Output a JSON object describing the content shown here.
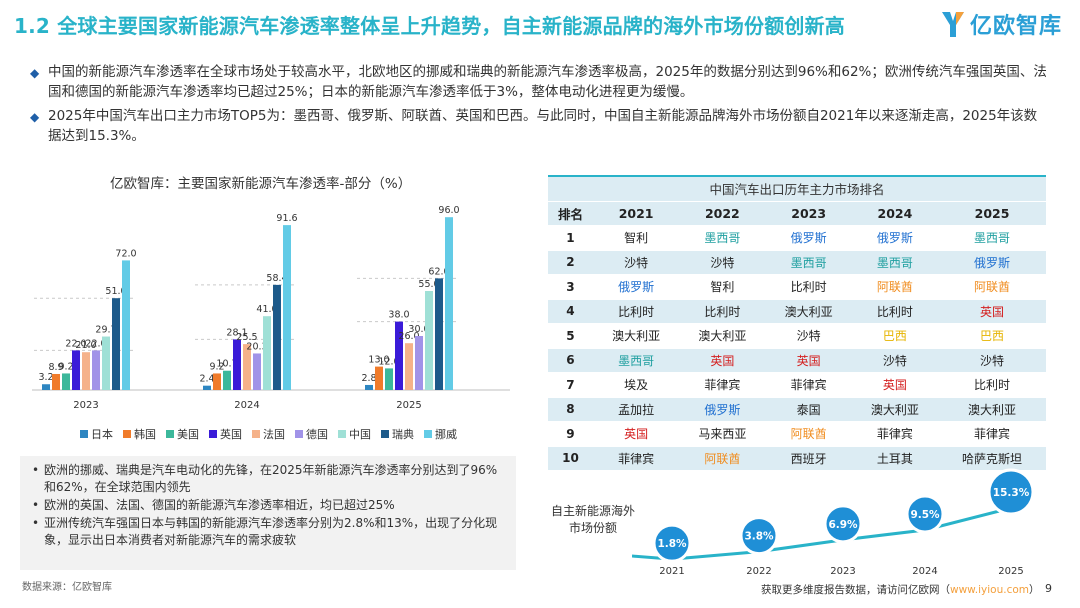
{
  "header": {
    "title": "1.2 全球主要国家新能源汽车渗透率整体呈上升趋势，自主新能源品牌的海外市场份额创新高",
    "logo_text": "亿欧智库"
  },
  "bullets": [
    "中国的新能源汽车渗透率在全球市场处于较高水平，北欧地区的挪威和瑞典的新能源汽车渗透率极高，2025年的数据分别达到96%和62%；欧洲传统汽车强国英国、法国和德国的新能源汽车渗透率均已超过25%；日本的新能源汽车渗透率低于3%，整体电动化进程更为缓慢。",
    "2025年中国汽车出口主力市场TOP5为：墨西哥、俄罗斯、阿联酋、英国和巴西。与此同时，中国自主新能源品牌海外市场份额自2021年以来逐渐走高，2025年该数据达到15.3%。"
  ],
  "bullet_mark": "◆",
  "note_mark": "•",
  "notes": [
    "欧洲的挪威、瑞典是汽车电动化的先锋，在2025年新能源汽车渗透率分别达到了96%和62%，在全球范围内领先",
    "欧洲的英国、法国、德国的新能源汽车渗透率相近，均已超过25%",
    "亚洲传统汽车强国日本与韩国的新能源汽车渗透率分别为2.8%和13%，出现了分化现象，显示出日本消费者对新能源汽车的需求疲软"
  ],
  "source": "数据来源：亿欧智库",
  "footer": {
    "text": "获取更多维度报告数据，请访问亿欧网（",
    "link": "www.iyiou.com",
    "close": "）",
    "page": "9"
  },
  "colors": {
    "title": "#29b3c9",
    "japan": "#2e86c1",
    "korea": "#f07b2a",
    "usa": "#3cb89b",
    "uk": "#3a1bd8",
    "france": "#f5b28a",
    "germany": "#a193e8",
    "china": "#9fe0d6",
    "sweden": "#1d5a8a",
    "norway": "#62cbe6",
    "share_line": "#29b3c9"
  },
  "legend": [
    "日本",
    "韩国",
    "美国",
    "英国",
    "法国",
    "德国",
    "中国",
    "瑞典",
    "挪威"
  ],
  "chart_data": [
    {
      "type": "bar",
      "title": "亿欧智库：主要国家新能源汽车渗透率-部分（%）",
      "categories": [
        "2023",
        "2024",
        "2025"
      ],
      "ylim": [
        0,
        100
      ],
      "series": [
        {
          "name": "日本",
          "values": [
            3.2,
            2.4,
            2.8
          ]
        },
        {
          "name": "韩国",
          "values": [
            8.9,
            9.2,
            13.0
          ]
        },
        {
          "name": "美国",
          "values": [
            9.2,
            10.7,
            12.0
          ]
        },
        {
          "name": "英国",
          "values": [
            22.0,
            28.1,
            38.0
          ]
        },
        {
          "name": "法国",
          "values": [
            21.0,
            25.5,
            26.0
          ]
        },
        {
          "name": "德国",
          "values": [
            22.0,
            20.3,
            30.0
          ]
        },
        {
          "name": "中国",
          "values": [
            29.7,
            41.0,
            55.0
          ]
        },
        {
          "name": "瑞典",
          "values": [
            51.0,
            58.4,
            62.0
          ]
        },
        {
          "name": "挪威",
          "values": [
            72.0,
            91.6,
            96.0
          ]
        }
      ],
      "labels": [
        [
          "3.2",
          "8.9",
          "9.2",
          "22.0",
          "21.0",
          "22.0",
          "29.7",
          "51.0",
          "72.0"
        ],
        [
          "2.4",
          "9.2",
          "10.7",
          "28.1",
          "25.5",
          "20.3",
          "41.0",
          "58.4",
          "91.6"
        ],
        [
          "2.8",
          "13.0",
          "12.0",
          "38.0",
          "26.0",
          "30.0",
          "55.0",
          "62.0",
          "96.0"
        ]
      ]
    },
    {
      "type": "line",
      "title": "自主新能源海外市场份额",
      "x": [
        "2021",
        "2022",
        "2023",
        "2024",
        "2025"
      ],
      "values": [
        1.8,
        3.8,
        6.9,
        9.5,
        15.3
      ],
      "labels": [
        "1.8%",
        "3.8%",
        "6.9%",
        "9.5%",
        "15.3%"
      ]
    }
  ],
  "table": {
    "caption": "中国汽车出口历年主力市场排名",
    "headers": [
      "排名",
      "2021",
      "2022",
      "2023",
      "2024",
      "2025"
    ],
    "rows": [
      [
        "1",
        "智利",
        "墨西哥",
        "俄罗斯",
        "俄罗斯",
        "墨西哥"
      ],
      [
        "2",
        "沙特",
        "沙特",
        "墨西哥",
        "墨西哥",
        "俄罗斯"
      ],
      [
        "3",
        "俄罗斯",
        "智利",
        "比利时",
        "阿联酋",
        "阿联酋"
      ],
      [
        "4",
        "比利时",
        "比利时",
        "澳大利亚",
        "比利时",
        "英国"
      ],
      [
        "5",
        "澳大利亚",
        "澳大利亚",
        "沙特",
        "巴西",
        "巴西"
      ],
      [
        "6",
        "墨西哥",
        "英国",
        "英国",
        "沙特",
        "沙特"
      ],
      [
        "7",
        "埃及",
        "菲律宾",
        "菲律宾",
        "英国",
        "比利时"
      ],
      [
        "8",
        "孟加拉",
        "俄罗斯",
        "泰国",
        "澳大利亚",
        "澳大利亚"
      ],
      [
        "9",
        "英国",
        "马来西亚",
        "阿联酋",
        "菲律宾",
        "菲律宾"
      ],
      [
        "10",
        "菲律宾",
        "阿联酋",
        "西班牙",
        "土耳其",
        "哈萨克斯坦"
      ]
    ],
    "highlight": {
      "墨西哥": "mexico",
      "俄罗斯": "russia",
      "阿联酋": "uae",
      "英国": "uk",
      "巴西": "brazil"
    }
  },
  "share_label": "自主新能源海外市场份额"
}
